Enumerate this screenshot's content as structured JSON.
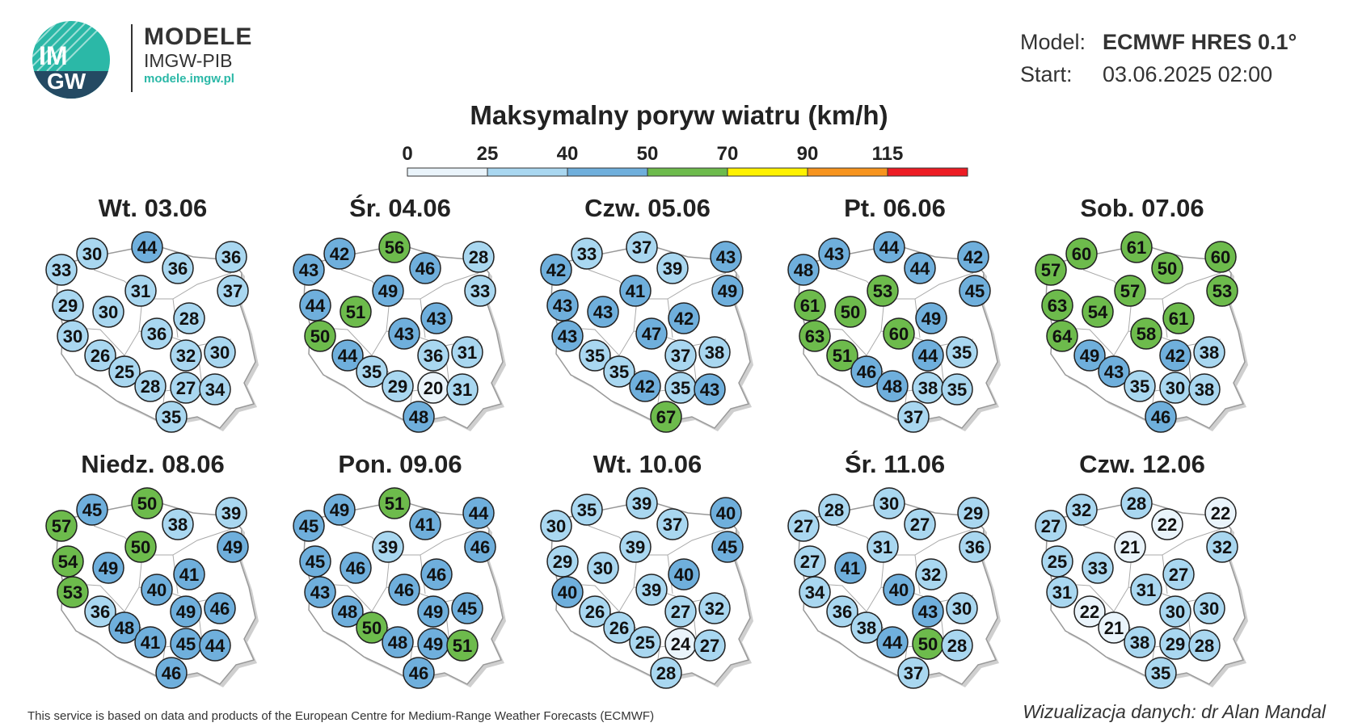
{
  "brand": {
    "line1": "MODELE",
    "line2": "IMGW-PIB",
    "url": "modele.imgw.pl",
    "logo_text_top": "IM",
    "logo_text_bottom": "GW"
  },
  "meta": {
    "model_label": "Model:",
    "model_value": "ECMWF HRES 0.1°",
    "start_label": "Start:",
    "start_value": "03.06.2025 02:00"
  },
  "title": "Maksymalny poryw wiatru (km/h)",
  "scale": {
    "labels": [
      "0",
      "25",
      "40",
      "50",
      "70",
      "90",
      "115"
    ],
    "colors": [
      "#eaf4fb",
      "#a9d7f0",
      "#6fafdc",
      "#6dbb4c",
      "#fff200",
      "#f7941e",
      "#ed1c24"
    ]
  },
  "panels": [
    {
      "date": "Wt. 03.06",
      "values": [
        30,
        44,
        33,
        36,
        36,
        31,
        37,
        29,
        30,
        28,
        30,
        36,
        26,
        32,
        30,
        25,
        28,
        27,
        34,
        35
      ]
    },
    {
      "date": "Śr. 04.06",
      "values": [
        42,
        56,
        43,
        46,
        28,
        49,
        33,
        44,
        51,
        43,
        50,
        43,
        44,
        36,
        31,
        35,
        29,
        20,
        31,
        48
      ]
    },
    {
      "date": "Czw. 05.06",
      "values": [
        33,
        37,
        42,
        39,
        43,
        41,
        49,
        43,
        43,
        42,
        43,
        47,
        35,
        37,
        38,
        35,
        42,
        35,
        43,
        67
      ]
    },
    {
      "date": "Pt. 06.06",
      "values": [
        43,
        44,
        48,
        44,
        42,
        53,
        45,
        61,
        50,
        49,
        63,
        60,
        51,
        44,
        35,
        46,
        48,
        38,
        35,
        37
      ]
    },
    {
      "date": "Sob. 07.06",
      "values": [
        60,
        61,
        57,
        50,
        60,
        57,
        53,
        63,
        54,
        61,
        64,
        58,
        49,
        42,
        38,
        43,
        35,
        30,
        38,
        46
      ]
    },
    {
      "date": "Niedz. 08.06",
      "values": [
        45,
        50,
        57,
        38,
        39,
        50,
        49,
        54,
        49,
        41,
        53,
        40,
        36,
        49,
        46,
        48,
        41,
        45,
        44,
        46
      ]
    },
    {
      "date": "Pon. 09.06",
      "values": [
        49,
        51,
        45,
        41,
        44,
        39,
        46,
        45,
        46,
        46,
        43,
        46,
        48,
        49,
        45,
        50,
        48,
        49,
        51,
        46
      ]
    },
    {
      "date": "Wt. 10.06",
      "values": [
        35,
        39,
        30,
        37,
        40,
        39,
        45,
        29,
        30,
        40,
        40,
        39,
        26,
        27,
        32,
        26,
        25,
        24,
        27,
        28
      ]
    },
    {
      "date": "Śr. 11.06",
      "values": [
        28,
        30,
        27,
        27,
        29,
        31,
        36,
        27,
        41,
        32,
        34,
        40,
        36,
        43,
        30,
        38,
        44,
        50,
        28,
        37
      ]
    },
    {
      "date": "Czw. 12.06",
      "values": [
        32,
        28,
        27,
        22,
        22,
        21,
        32,
        25,
        33,
        27,
        31,
        31,
        22,
        30,
        30,
        21,
        38,
        29,
        28,
        35
      ]
    }
  ],
  "footer": "This service is based on data and products of the European Centre for Medium-Range Weather Forecasts (ECMWF)",
  "credit": "Wizualizacja danych: dr Alan Mandal"
}
